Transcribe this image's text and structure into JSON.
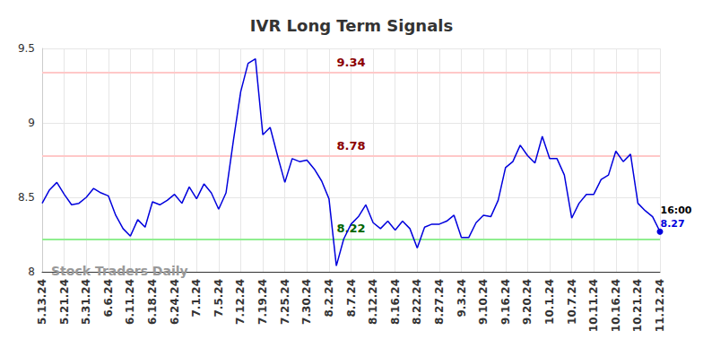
{
  "chart_data": {
    "type": "line",
    "title": "IVR Long Term Signals",
    "color": "#0000dd",
    "grid": true,
    "ylim": [
      8,
      9.5
    ],
    "yticks": [
      8,
      8.5,
      9,
      9.5
    ],
    "categories": [
      "5.13.24",
      null,
      null,
      "5.21.24",
      null,
      null,
      "5.31.24",
      null,
      null,
      "6.6.24",
      null,
      null,
      "6.11.24",
      null,
      null,
      "6.18.24",
      null,
      null,
      "6.24.24",
      null,
      null,
      "7.1.24",
      null,
      null,
      "7.5.24",
      null,
      null,
      "7.12.24",
      null,
      null,
      "7.19.24",
      null,
      null,
      "7.25.24",
      null,
      null,
      "7.30.24",
      null,
      null,
      "8.2.24",
      null,
      null,
      "8.7.24",
      null,
      null,
      "8.12.24",
      null,
      null,
      "8.16.24",
      null,
      null,
      "8.22.24",
      null,
      null,
      "8.27.24",
      null,
      null,
      "9.3.24",
      null,
      null,
      "9.10.24",
      null,
      null,
      "9.16.24",
      null,
      null,
      "9.20.24",
      null,
      null,
      "10.1.24",
      null,
      null,
      "10.7.24",
      null,
      null,
      "10.11.24",
      null,
      null,
      "10.16.24",
      null,
      null,
      "10.21.24",
      null,
      null,
      "11.12.24"
    ],
    "values": [
      8.46,
      8.55,
      8.6,
      8.52,
      8.45,
      8.46,
      8.5,
      8.56,
      8.53,
      8.51,
      8.38,
      8.29,
      8.24,
      8.35,
      8.3,
      8.47,
      8.45,
      8.48,
      8.52,
      8.46,
      8.57,
      8.49,
      8.59,
      8.53,
      8.42,
      8.53,
      8.88,
      9.21,
      9.4,
      9.43,
      8.92,
      8.97,
      8.78,
      8.6,
      8.76,
      8.74,
      8.75,
      8.69,
      8.61,
      8.49,
      8.04,
      8.22,
      8.32,
      8.37,
      8.45,
      8.33,
      8.29,
      8.34,
      8.28,
      8.34,
      8.29,
      8.16,
      8.3,
      8.32,
      8.32,
      8.34,
      8.38,
      8.23,
      8.23,
      8.33,
      8.38,
      8.37,
      8.48,
      8.7,
      8.74,
      8.85,
      8.78,
      8.73,
      8.91,
      8.76,
      8.76,
      8.65,
      8.36,
      8.46,
      8.52,
      8.52,
      8.62,
      8.65,
      8.81,
      8.74,
      8.79,
      8.46,
      8.41,
      8.37,
      8.27
    ],
    "annotations": [
      {
        "value": 9.34,
        "label": "9.34",
        "color": "#ffc8c8",
        "label_color": "#8b0000"
      },
      {
        "value": 8.78,
        "label": "8.78",
        "color": "#ffc8c8",
        "label_color": "#8b0000"
      },
      {
        "value": 8.22,
        "label": "8.22",
        "color": "#90ee90",
        "label_color": "#006400"
      }
    ],
    "last_point_label": "16:00",
    "watermark": "Stock Traders Daily"
  }
}
